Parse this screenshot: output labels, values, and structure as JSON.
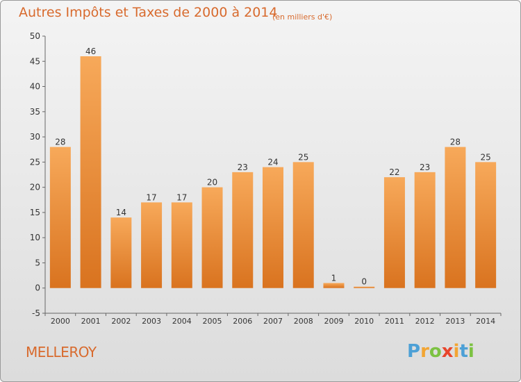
{
  "title": "Autres Impôts et Taxes de 2000 à 2014",
  "subtitle": "(en milliers d'€)",
  "commune": "MELLEROY",
  "logo": {
    "letters": [
      "P",
      "r",
      "o",
      "x",
      "i",
      "t",
      "i"
    ],
    "colors": [
      "#4da0d6",
      "#f2a533",
      "#7cc242",
      "#e8452c",
      "#f2a533",
      "#4da0d6",
      "#7cc242"
    ]
  },
  "colors": {
    "bar_light": "#f7a95a",
    "bar_dark": "#d9731f",
    "text": "#333333",
    "title": "#d86a2d"
  },
  "chart_data": {
    "type": "bar",
    "categories": [
      "2000",
      "2001",
      "2002",
      "2003",
      "2004",
      "2005",
      "2006",
      "2007",
      "2008",
      "2009",
      "2010",
      "2011",
      "2012",
      "2013",
      "2014"
    ],
    "values": [
      28,
      46,
      14,
      17,
      17,
      20,
      23,
      24,
      25,
      1,
      0,
      22,
      23,
      28,
      25
    ],
    "data_labels": [
      "28",
      "46",
      "14",
      "17",
      "17",
      "20",
      "23",
      "24",
      "25",
      "1",
      "0",
      "22",
      "23",
      "28",
      "25"
    ],
    "title": "Autres Impôts et Taxes de 2000 à 2014",
    "xlabel": "",
    "ylabel": "",
    "ylim": [
      -5,
      50
    ],
    "yticks": [
      -5,
      0,
      5,
      10,
      15,
      20,
      25,
      30,
      35,
      40,
      45,
      50
    ],
    "grid": false,
    "legend": "none"
  }
}
